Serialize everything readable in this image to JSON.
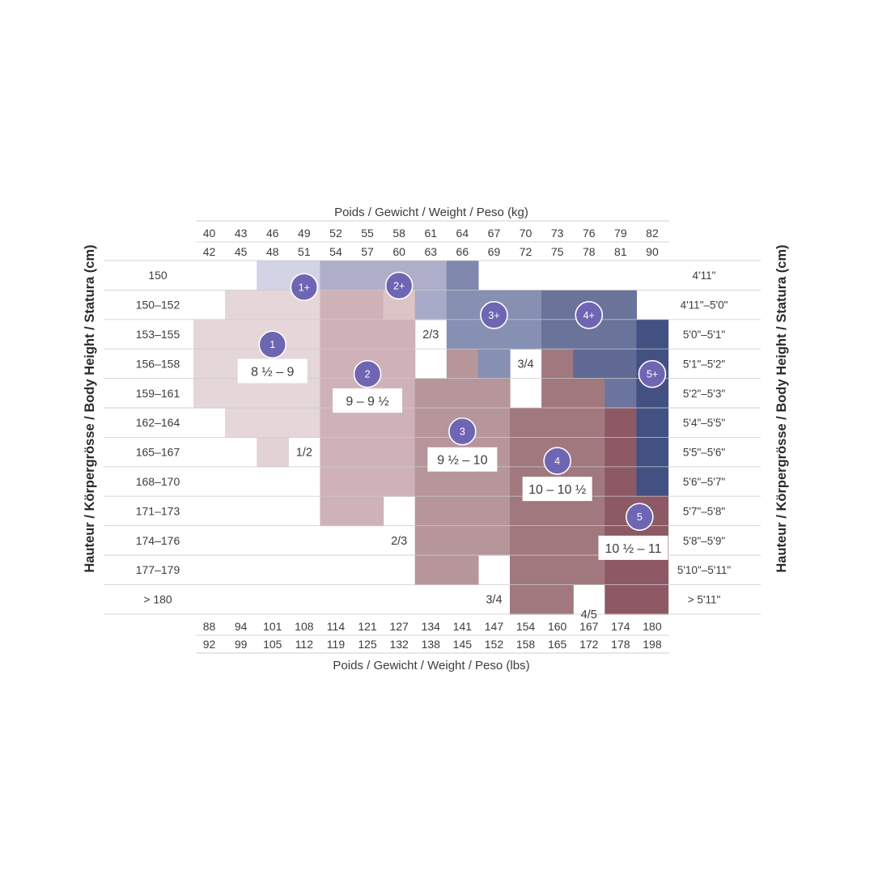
{
  "chart_data": {
    "type": "heatmap",
    "title_top": "Poids / Gewicht / Weight / Peso (kg)",
    "title_bottom": "Poids / Gewicht / Weight / Peso (lbs)",
    "ylabel": "Hauteur / Körpergrösse / Body Height / Statura (cm)",
    "kg_from": [
      "40",
      "43",
      "46",
      "49",
      "52",
      "55",
      "58",
      "61",
      "64",
      "67",
      "70",
      "73",
      "76",
      "79",
      "82"
    ],
    "kg_to": [
      "42",
      "45",
      "48",
      "51",
      "54",
      "57",
      "60",
      "63",
      "66",
      "69",
      "72",
      "75",
      "78",
      "81",
      "90"
    ],
    "lbs_from": [
      "88",
      "94",
      "101",
      "108",
      "114",
      "121",
      "127",
      "134",
      "141",
      "147",
      "154",
      "160",
      "167",
      "174",
      "180"
    ],
    "lbs_to": [
      "92",
      "99",
      "105",
      "112",
      "119",
      "125",
      "132",
      "138",
      "145",
      "152",
      "158",
      "165",
      "172",
      "178",
      "198"
    ],
    "height_cm": [
      "150",
      "150–152",
      "153–155",
      "156–158",
      "159–161",
      "162–164",
      "165–167",
      "168–170",
      "171–173",
      "174–176",
      "177–179",
      "> 180"
    ],
    "height_ft": [
      "4'11\"",
      "4'11\"–5'0\"",
      "5'0\"–5'1\"",
      "5'1\"–5'2\"",
      "5'2\"–5'3\"",
      "5'4\"–5'5\"",
      "5'5\"–5'6\"",
      "5'6\"–5'7\"",
      "5'7\"–5'8\"",
      "5'8\"–5'9\"",
      "5'10\"–5'11\"",
      "> 5'11\""
    ],
    "grid": [
      [
        "",
        "",
        "1+",
        "1+",
        "2+",
        "2+",
        "2+",
        "2+",
        "3+",
        "",
        "",
        "",
        "",
        "",
        ""
      ],
      [
        "",
        "1",
        "1",
        "1",
        "2",
        "2",
        "2",
        "2+",
        "3+",
        "3+",
        "3+",
        "4+",
        "4+",
        "4+",
        ""
      ],
      [
        "1",
        "1",
        "1",
        "1",
        "2",
        "2",
        "2",
        "",
        "3+",
        "3+",
        "3+",
        "4+",
        "4+",
        "4+",
        "5+"
      ],
      [
        "1",
        "1",
        "1",
        "1",
        "2",
        "2",
        "2",
        "",
        "3",
        "3+",
        "",
        "4",
        "4+",
        "4+",
        "5+"
      ],
      [
        "1",
        "1",
        "1",
        "1",
        "2",
        "2",
        "2",
        "3",
        "3",
        "3",
        "",
        "4",
        "4",
        "4+",
        "5+"
      ],
      [
        "",
        "1",
        "1",
        "1",
        "2",
        "2",
        "2",
        "3",
        "3",
        "3",
        "4",
        "4",
        "4",
        "5",
        "5+"
      ],
      [
        "",
        "",
        "1",
        "",
        "2",
        "2",
        "2",
        "3",
        "3",
        "3",
        "4",
        "4",
        "4",
        "5",
        "5+"
      ],
      [
        "",
        "",
        "",
        "",
        "2",
        "2",
        "2",
        "3",
        "3",
        "3",
        "4",
        "4",
        "4",
        "5",
        "5+"
      ],
      [
        "",
        "",
        "",
        "",
        "2",
        "2",
        "",
        "3",
        "3",
        "3",
        "4",
        "4",
        "4",
        "5",
        "5"
      ],
      [
        "",
        "",
        "",
        "",
        "",
        "",
        "",
        "3",
        "3",
        "3",
        "4",
        "4",
        "4",
        "5",
        "5"
      ],
      [
        "",
        "",
        "",
        "",
        "",
        "",
        "",
        "3",
        "3",
        "",
        "4",
        "4",
        "4",
        "5",
        "5"
      ],
      [
        "",
        "",
        "",
        "",
        "",
        "",
        "",
        "",
        "",
        "",
        "4",
        "4",
        "",
        "5",
        "5"
      ]
    ],
    "sizes": {
      "1": {
        "color": "#e5d6d9"
      },
      "2": {
        "color": "#cfb2b7"
      },
      "3": {
        "color": "#b6959b"
      },
      "4": {
        "color": "#a0787e"
      },
      "5": {
        "color": "#8c5965"
      },
      "1+": {
        "color": "#d3d3e6"
      },
      "2+": {
        "color": "#aeaecb"
      },
      "3+": {
        "color": "#8690b2"
      },
      "4+": {
        "color": "#6a7399"
      },
      "5+": {
        "color": "#435082"
      }
    },
    "cell_overrides": [
      {
        "row": 0,
        "col": 8,
        "color": "#8087ac"
      },
      {
        "row": 1,
        "col": 6,
        "color": "#dcc4c6"
      },
      {
        "row": 1,
        "col": 7,
        "color": "#a7abc8"
      },
      {
        "row": 3,
        "col": 12,
        "color": "#606a95"
      },
      {
        "row": 3,
        "col": 13,
        "color": "#606a95"
      },
      {
        "row": 3,
        "col": 9,
        "color": "#8690b2"
      },
      {
        "row": 4,
        "col": 13,
        "color": "#6c75a0"
      },
      {
        "row": 6,
        "col": 2,
        "color": "#e2d2d5"
      }
    ],
    "badges": [
      {
        "label": "1+",
        "col": 3,
        "row": 0.9
      },
      {
        "label": "2+",
        "col": 6,
        "row": 0.85
      },
      {
        "label": "3+",
        "col": 9,
        "row": 1.85
      },
      {
        "label": "4+",
        "col": 12,
        "row": 1.85
      },
      {
        "label": "5+",
        "col": 14,
        "row": 3.85
      },
      {
        "label": "1",
        "col": 2,
        "row": 2.85
      },
      {
        "label": "2",
        "col": 5,
        "row": 3.85
      },
      {
        "label": "3",
        "col": 8,
        "row": 5.8
      },
      {
        "label": "4",
        "col": 11,
        "row": 6.8
      },
      {
        "label": "5",
        "col": 13.6,
        "row": 8.7
      }
    ],
    "size_labels": [
      {
        "text": "8 ½ – 9",
        "col": 2,
        "row": 3.75
      },
      {
        "text": "9 – 9 ½",
        "col": 5,
        "row": 4.75
      },
      {
        "text": "9 ½ – 10",
        "col": 8,
        "row": 6.75
      },
      {
        "text": "10 – 10 ½",
        "col": 11,
        "row": 7.75
      },
      {
        "text": "10 ½ – 11",
        "col": 13.4,
        "row": 9.75
      }
    ],
    "overlap_labels": [
      {
        "text": "2/3",
        "col": 7,
        "row": 2.5
      },
      {
        "text": "3/4",
        "col": 10,
        "row": 3.5
      },
      {
        "text": "1/2",
        "col": 3,
        "row": 6.5
      },
      {
        "text": "2/3",
        "col": 6,
        "row": 9.5
      },
      {
        "text": "3/4",
        "col": 9,
        "row": 11.5
      },
      {
        "text": "4/5",
        "col": 12,
        "row": 12.0
      }
    ],
    "badge_color": "#6e66b3",
    "grid_lines": true
  }
}
